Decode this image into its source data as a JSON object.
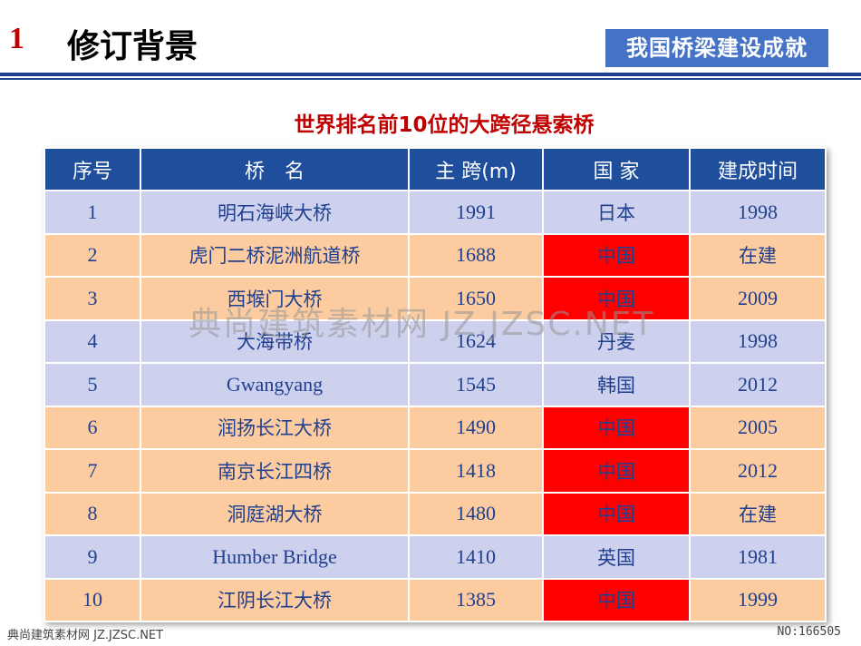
{
  "header": {
    "number": "1",
    "title": "修订背景",
    "badge": "我国桥梁建设成就"
  },
  "table": {
    "title": "世界排名前10位的大跨径悬索桥",
    "columns": [
      "序号",
      "桥　名",
      "主 跨(m)",
      "国 家",
      "建成时间"
    ],
    "rows": [
      {
        "no": "1",
        "name": "明石海峡大桥",
        "span": "1991",
        "country": "日本",
        "year": "1998"
      },
      {
        "no": "2",
        "name": "虎门二桥泥洲航道桥",
        "span": "1688",
        "country": "中国",
        "year": "在建"
      },
      {
        "no": "3",
        "name": "西堠门大桥",
        "span": "1650",
        "country": "中国",
        "year": "2009"
      },
      {
        "no": "4",
        "name": "大海带桥",
        "span": "1624",
        "country": "丹麦",
        "year": "1998"
      },
      {
        "no": "5",
        "name": "Gwangyang",
        "span": "1545",
        "country": "韩国",
        "year": "2012"
      },
      {
        "no": "6",
        "name": "润扬长江大桥",
        "span": "1490",
        "country": "中国",
        "year": "2005"
      },
      {
        "no": "7",
        "name": "南京长江四桥",
        "span": "1418",
        "country": "中国",
        "year": "2012"
      },
      {
        "no": "8",
        "name": "洞庭湖大桥",
        "span": "1480",
        "country": "中国",
        "year": "在建"
      },
      {
        "no": "9",
        "name": "Humber Bridge",
        "span": "1410",
        "country": "英国",
        "year": "1981"
      },
      {
        "no": "10",
        "name": "江阴长江大桥",
        "span": "1385",
        "country": "中国",
        "year": "1999"
      }
    ]
  },
  "watermark": "典尚建筑素材网 JZ.JZSC.NET",
  "footer": {
    "left": "典尚建筑素材网 JZ.JZSC.NET",
    "right": "NO:166505"
  },
  "colors": {
    "header_bg": "#1f4e9c",
    "row_lavender": "#cdd1ee",
    "row_peach": "#fccca0",
    "highlight_china": "#ff0000",
    "title_red": "#c00000",
    "badge_bg": "#4472c4"
  }
}
